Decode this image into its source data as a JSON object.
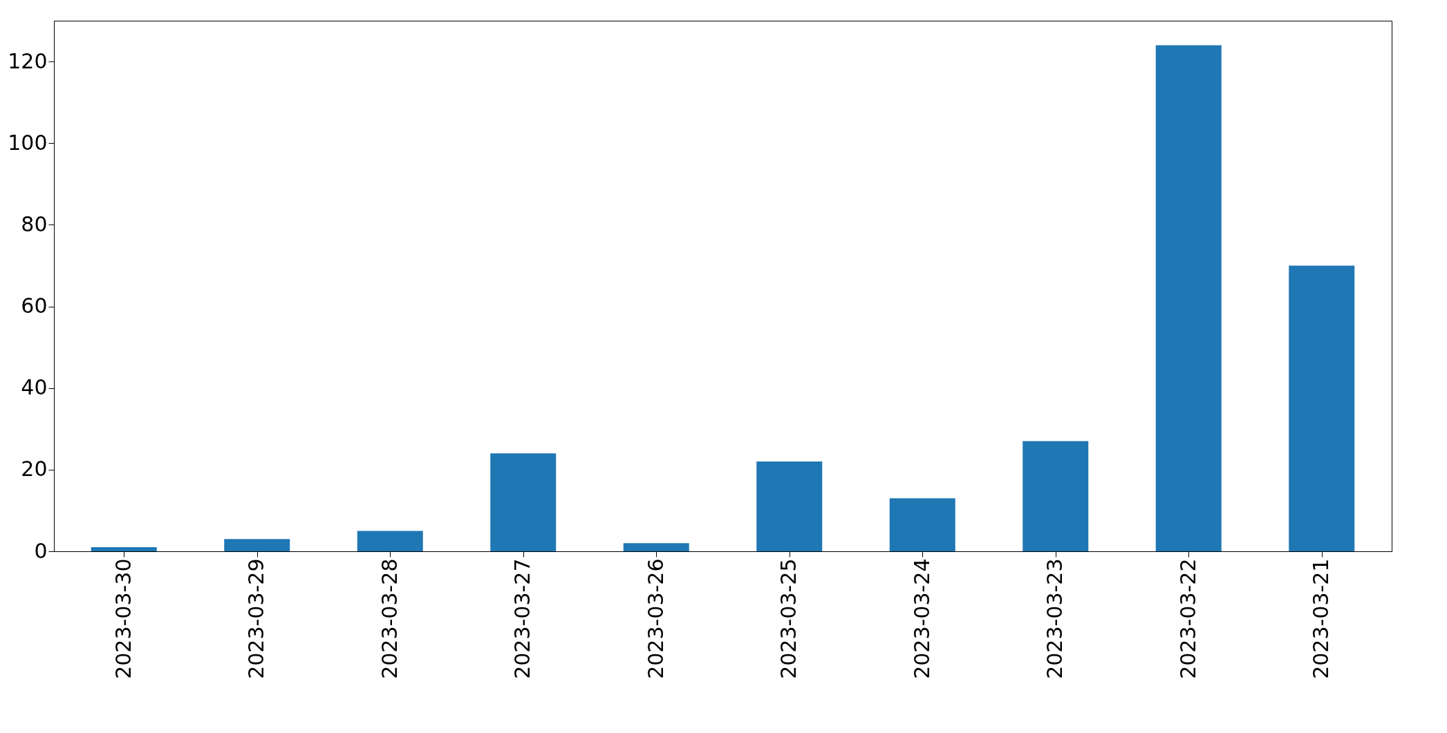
{
  "chart_data": {
    "type": "bar",
    "categories": [
      "2023-03-30",
      "2023-03-29",
      "2023-03-28",
      "2023-03-27",
      "2023-03-26",
      "2023-03-25",
      "2023-03-24",
      "2023-03-23",
      "2023-03-22",
      "2023-03-21"
    ],
    "values": [
      1,
      3,
      5,
      24,
      2,
      22,
      13,
      27,
      124,
      70
    ],
    "color": "#1f77b4",
    "ylim": [
      0,
      130
    ],
    "yticks": [
      0,
      20,
      40,
      60,
      80,
      100,
      120
    ],
    "grid": false
  }
}
